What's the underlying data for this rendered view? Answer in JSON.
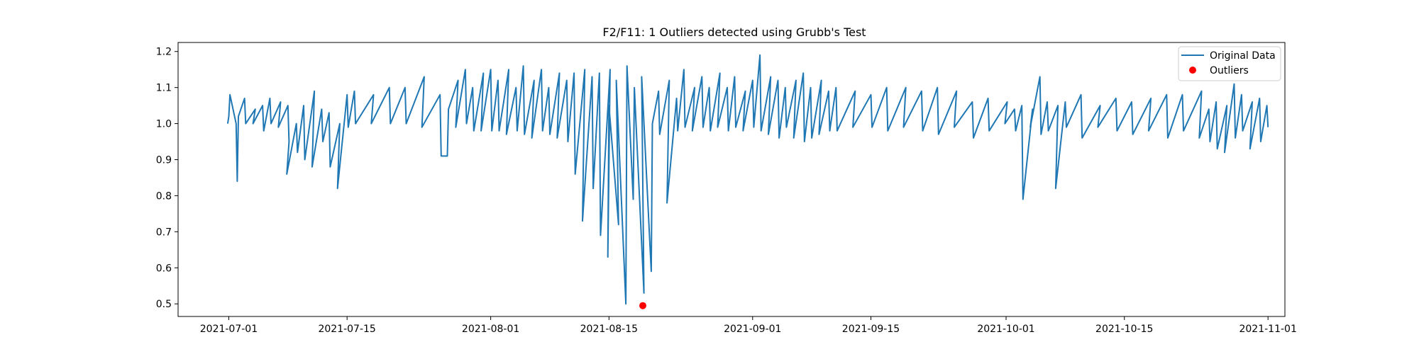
{
  "chart_data": {
    "type": "line",
    "title": "F2/F11: 1 Outliers detected using Grubb's Test",
    "xlabel": "",
    "ylabel": "",
    "xlim": [
      "2021-06-25",
      "2021-11-03"
    ],
    "ylim": [
      0.465,
      1.225
    ],
    "x_ticks": [
      "2021-07-01",
      "2021-07-15",
      "2021-08-01",
      "2021-08-15",
      "2021-09-01",
      "2021-09-15",
      "2021-10-01",
      "2021-10-15",
      "2021-11-01"
    ],
    "y_ticks": [
      "0.5",
      "0.6",
      "0.7",
      "0.8",
      "0.9",
      "1.0",
      "1.1",
      "1.2"
    ],
    "legend": {
      "position": "top-right",
      "entries": [
        "Original Data",
        "Outliers"
      ]
    },
    "grid": false,
    "series": [
      {
        "name": "Original Data",
        "kind": "line",
        "color": "#1f77b4",
        "points": [
          [
            "2021-07-01",
            1.0
          ],
          [
            "2021-07-01",
            1.02
          ],
          [
            "2021-07-01",
            1.08
          ],
          [
            "2021-07-02",
            1.0
          ],
          [
            "2021-07-02",
            0.84
          ],
          [
            "2021-07-02",
            1.02
          ],
          [
            "2021-07-03",
            1.07
          ],
          [
            "2021-07-03",
            1.0
          ],
          [
            "2021-07-04",
            1.04
          ],
          [
            "2021-07-04",
            1.0
          ],
          [
            "2021-07-05",
            1.05
          ],
          [
            "2021-07-05",
            0.98
          ],
          [
            "2021-07-06",
            1.07
          ],
          [
            "2021-07-06",
            1.0
          ],
          [
            "2021-07-07",
            1.06
          ],
          [
            "2021-07-07",
            0.99
          ],
          [
            "2021-07-08",
            1.05
          ],
          [
            "2021-07-08",
            0.95
          ],
          [
            "2021-07-08",
            0.86
          ],
          [
            "2021-07-09",
            1.0
          ],
          [
            "2021-07-09",
            0.92
          ],
          [
            "2021-07-10",
            1.05
          ],
          [
            "2021-07-10",
            0.9
          ],
          [
            "2021-07-11",
            1.09
          ],
          [
            "2021-07-11",
            0.88
          ],
          [
            "2021-07-12",
            1.04
          ],
          [
            "2021-07-12",
            0.95
          ],
          [
            "2021-07-13",
            1.03
          ],
          [
            "2021-07-13",
            0.88
          ],
          [
            "2021-07-14",
            1.0
          ],
          [
            "2021-07-14",
            0.82
          ],
          [
            "2021-07-15",
            1.08
          ],
          [
            "2021-07-15",
            0.99
          ],
          [
            "2021-07-16",
            1.09
          ],
          [
            "2021-07-16",
            1.0
          ],
          [
            "2021-07-18",
            1.08
          ],
          [
            "2021-07-18",
            1.0
          ],
          [
            "2021-07-20",
            1.1
          ],
          [
            "2021-07-20",
            1.0
          ],
          [
            "2021-07-22",
            1.1
          ],
          [
            "2021-07-22",
            1.0
          ],
          [
            "2021-07-24",
            1.13
          ],
          [
            "2021-07-24",
            0.99
          ],
          [
            "2021-07-26",
            1.08
          ],
          [
            "2021-07-26",
            0.91
          ],
          [
            "2021-07-27",
            0.91
          ],
          [
            "2021-07-27",
            1.04
          ],
          [
            "2021-07-28",
            1.12
          ],
          [
            "2021-07-28",
            0.99
          ],
          [
            "2021-07-29",
            1.15
          ],
          [
            "2021-07-29",
            1.0
          ],
          [
            "2021-07-30",
            1.1
          ],
          [
            "2021-07-30",
            0.98
          ],
          [
            "2021-07-31",
            1.14
          ],
          [
            "2021-07-31",
            0.98
          ],
          [
            "2021-08-01",
            1.15
          ],
          [
            "2021-08-01",
            0.98
          ],
          [
            "2021-08-02",
            1.12
          ],
          [
            "2021-08-02",
            0.98
          ],
          [
            "2021-08-03",
            1.15
          ],
          [
            "2021-08-03",
            0.97
          ],
          [
            "2021-08-04",
            1.1
          ],
          [
            "2021-08-04",
            0.98
          ],
          [
            "2021-08-05",
            1.16
          ],
          [
            "2021-08-05",
            0.97
          ],
          [
            "2021-08-06",
            1.12
          ],
          [
            "2021-08-06",
            0.96
          ],
          [
            "2021-08-07",
            1.15
          ],
          [
            "2021-08-07",
            0.98
          ],
          [
            "2021-08-08",
            1.1
          ],
          [
            "2021-08-08",
            0.97
          ],
          [
            "2021-08-09",
            1.14
          ],
          [
            "2021-08-09",
            0.96
          ],
          [
            "2021-08-10",
            1.12
          ],
          [
            "2021-08-10",
            0.95
          ],
          [
            "2021-08-11",
            1.14
          ],
          [
            "2021-08-11",
            0.86
          ],
          [
            "2021-08-12",
            1.15
          ],
          [
            "2021-08-12",
            0.73
          ],
          [
            "2021-08-13",
            1.13
          ],
          [
            "2021-08-13",
            0.82
          ],
          [
            "2021-08-14",
            1.14
          ],
          [
            "2021-08-14",
            0.69
          ],
          [
            "2021-08-15",
            1.15
          ],
          [
            "2021-08-15",
            0.63
          ],
          [
            "2021-08-15",
            1.05
          ],
          [
            "2021-08-16",
            0.72
          ],
          [
            "2021-08-16",
            1.12
          ],
          [
            "2021-08-17",
            0.5
          ],
          [
            "2021-08-17",
            1.16
          ],
          [
            "2021-08-18",
            0.79
          ],
          [
            "2021-08-18",
            1.1
          ],
          [
            "2021-08-19",
            0.53
          ],
          [
            "2021-08-19",
            1.13
          ],
          [
            "2021-08-20",
            0.59
          ],
          [
            "2021-08-20",
            1.0
          ],
          [
            "2021-08-21",
            1.09
          ],
          [
            "2021-08-21",
            0.97
          ],
          [
            "2021-08-22",
            1.12
          ],
          [
            "2021-08-22",
            0.78
          ],
          [
            "2021-08-23",
            1.07
          ],
          [
            "2021-08-23",
            0.98
          ],
          [
            "2021-08-24",
            1.15
          ],
          [
            "2021-08-24",
            0.99
          ],
          [
            "2021-08-25",
            1.1
          ],
          [
            "2021-08-25",
            0.98
          ],
          [
            "2021-08-26",
            1.13
          ],
          [
            "2021-08-26",
            0.99
          ],
          [
            "2021-08-27",
            1.1
          ],
          [
            "2021-08-27",
            0.98
          ],
          [
            "2021-08-28",
            1.14
          ],
          [
            "2021-08-28",
            0.99
          ],
          [
            "2021-08-29",
            1.1
          ],
          [
            "2021-08-29",
            0.98
          ],
          [
            "2021-08-30",
            1.13
          ],
          [
            "2021-08-30",
            0.99
          ],
          [
            "2021-08-31",
            1.09
          ],
          [
            "2021-08-31",
            0.98
          ],
          [
            "2021-09-01",
            1.12
          ],
          [
            "2021-09-01",
            0.99
          ],
          [
            "2021-09-02",
            1.19
          ],
          [
            "2021-09-02",
            0.98
          ],
          [
            "2021-09-03",
            1.13
          ],
          [
            "2021-09-03",
            0.97
          ],
          [
            "2021-09-04",
            1.12
          ],
          [
            "2021-09-04",
            0.96
          ],
          [
            "2021-09-05",
            1.1
          ],
          [
            "2021-09-05",
            0.99
          ],
          [
            "2021-09-06",
            1.12
          ],
          [
            "2021-09-06",
            0.96
          ],
          [
            "2021-09-07",
            1.14
          ],
          [
            "2021-09-07",
            0.95
          ],
          [
            "2021-09-08",
            1.1
          ],
          [
            "2021-09-08",
            0.96
          ],
          [
            "2021-09-09",
            1.12
          ],
          [
            "2021-09-09",
            0.97
          ],
          [
            "2021-09-10",
            1.09
          ],
          [
            "2021-09-10",
            0.98
          ],
          [
            "2021-09-11",
            1.1
          ],
          [
            "2021-09-11",
            0.98
          ],
          [
            "2021-09-13",
            1.09
          ],
          [
            "2021-09-13",
            0.99
          ],
          [
            "2021-09-15",
            1.08
          ],
          [
            "2021-09-15",
            0.99
          ],
          [
            "2021-09-17",
            1.1
          ],
          [
            "2021-09-17",
            0.98
          ],
          [
            "2021-09-19",
            1.1
          ],
          [
            "2021-09-19",
            0.99
          ],
          [
            "2021-09-21",
            1.09
          ],
          [
            "2021-09-21",
            0.98
          ],
          [
            "2021-09-23",
            1.1
          ],
          [
            "2021-09-23",
            0.97
          ],
          [
            "2021-09-25",
            1.09
          ],
          [
            "2021-09-25",
            0.99
          ],
          [
            "2021-09-27",
            1.06
          ],
          [
            "2021-09-27",
            0.96
          ],
          [
            "2021-09-29",
            1.07
          ],
          [
            "2021-09-29",
            0.98
          ],
          [
            "2021-10-01",
            1.06
          ],
          [
            "2021-10-01",
            1.0
          ],
          [
            "2021-10-02",
            1.04
          ],
          [
            "2021-10-02",
            0.98
          ],
          [
            "2021-10-03",
            1.05
          ],
          [
            "2021-10-03",
            0.79
          ],
          [
            "2021-10-04",
            1.04
          ],
          [
            "2021-10-04",
            0.99
          ],
          [
            "2021-10-05",
            1.13
          ],
          [
            "2021-10-05",
            0.97
          ],
          [
            "2021-10-06",
            1.06
          ],
          [
            "2021-10-06",
            0.98
          ],
          [
            "2021-10-07",
            1.05
          ],
          [
            "2021-10-07",
            0.82
          ],
          [
            "2021-10-08",
            1.06
          ],
          [
            "2021-10-08",
            0.99
          ],
          [
            "2021-10-10",
            1.08
          ],
          [
            "2021-10-10",
            0.96
          ],
          [
            "2021-10-12",
            1.05
          ],
          [
            "2021-10-12",
            0.99
          ],
          [
            "2021-10-14",
            1.07
          ],
          [
            "2021-10-14",
            0.98
          ],
          [
            "2021-10-16",
            1.06
          ],
          [
            "2021-10-16",
            0.97
          ],
          [
            "2021-10-18",
            1.07
          ],
          [
            "2021-10-18",
            0.98
          ],
          [
            "2021-10-20",
            1.08
          ],
          [
            "2021-10-20",
            0.96
          ],
          [
            "2021-10-22",
            1.08
          ],
          [
            "2021-10-22",
            0.98
          ],
          [
            "2021-10-24",
            1.09
          ],
          [
            "2021-10-24",
            0.96
          ],
          [
            "2021-10-25",
            1.04
          ],
          [
            "2021-10-25",
            0.95
          ],
          [
            "2021-10-26",
            1.06
          ],
          [
            "2021-10-26",
            0.93
          ],
          [
            "2021-10-27",
            1.05
          ],
          [
            "2021-10-27",
            0.92
          ],
          [
            "2021-10-28",
            1.11
          ],
          [
            "2021-10-28",
            0.96
          ],
          [
            "2021-10-29",
            1.08
          ],
          [
            "2021-10-29",
            0.98
          ],
          [
            "2021-10-30",
            1.06
          ],
          [
            "2021-10-30",
            0.93
          ],
          [
            "2021-10-31",
            1.07
          ],
          [
            "2021-10-31",
            0.95
          ],
          [
            "2021-11-01",
            1.05
          ],
          [
            "2021-11-01",
            0.99
          ]
        ]
      },
      {
        "name": "Outliers",
        "kind": "scatter",
        "color": "#ff0000",
        "points": [
          [
            "2021-08-19",
            0.495
          ]
        ]
      }
    ]
  }
}
